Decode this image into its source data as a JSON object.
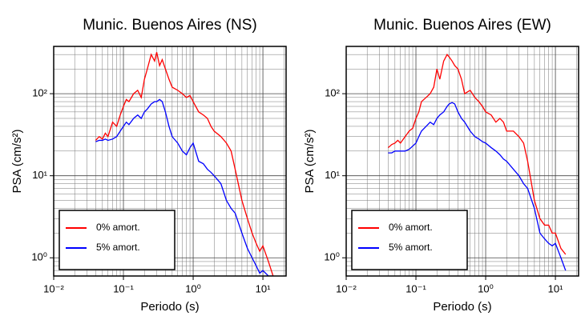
{
  "chart_data": [
    {
      "type": "line",
      "title": "Munic. Buenos Aires (NS)",
      "xlabel": "Periodo (s)",
      "ylabel": "PSA (cm/s²)",
      "log_x": true,
      "log_y": true,
      "grid": true,
      "legend": "lower left",
      "xlim": [
        0.01,
        21.5
      ],
      "ylim": [
        0.6,
        377
      ],
      "xticks": [
        {
          "value": 0.01,
          "label": "10⁻²"
        },
        {
          "value": 0.1,
          "label": "10⁻¹"
        },
        {
          "value": 1,
          "label": "10⁰"
        },
        {
          "value": 10,
          "label": "10¹"
        }
      ],
      "yticks": [
        {
          "value": 1,
          "label": "10⁰"
        },
        {
          "value": 10,
          "label": "10¹"
        },
        {
          "value": 100,
          "label": "10²"
        }
      ],
      "xminorticks": [
        0.02,
        0.03,
        0.04,
        0.05,
        0.06,
        0.07,
        0.08,
        0.09,
        0.2,
        0.3,
        0.4,
        0.5,
        0.6,
        0.7,
        0.8,
        0.9,
        2,
        3,
        4,
        5,
        6,
        7,
        8,
        9,
        20
      ],
      "yminorticks": [
        0.7,
        0.8,
        0.9,
        2,
        3,
        4,
        5,
        6,
        7,
        8,
        9,
        20,
        30,
        40,
        50,
        60,
        70,
        80,
        90,
        200,
        300
      ],
      "x": [
        0.04,
        0.045,
        0.05,
        0.055,
        0.06,
        0.07,
        0.08,
        0.09,
        0.1,
        0.11,
        0.12,
        0.14,
        0.16,
        0.18,
        0.2,
        0.22,
        0.25,
        0.28,
        0.3,
        0.33,
        0.36,
        0.4,
        0.45,
        0.5,
        0.6,
        0.7,
        0.8,
        0.9,
        1.0,
        1.2,
        1.4,
        1.6,
        1.8,
        2.0,
        2.5,
        3.0,
        3.5,
        4.0,
        5,
        6,
        7,
        8,
        9,
        10,
        12,
        14
      ],
      "series": [
        {
          "name": "0% amort.",
          "color": "#ff0000",
          "values": [
            27,
            30,
            28,
            33,
            30,
            45,
            40,
            55,
            70,
            85,
            80,
            100,
            110,
            90,
            150,
            200,
            300,
            250,
            320,
            220,
            260,
            200,
            150,
            120,
            110,
            100,
            90,
            95,
            80,
            60,
            55,
            50,
            40,
            35,
            30,
            25,
            20,
            12,
            5,
            3,
            2,
            1.5,
            1.2,
            1.4,
            0.9,
            0.6
          ]
        },
        {
          "name": "5% amort.",
          "color": "#0000ff",
          "values": [
            26,
            27,
            27,
            28,
            27,
            28,
            30,
            35,
            40,
            45,
            42,
            50,
            55,
            50,
            60,
            65,
            75,
            80,
            80,
            85,
            80,
            60,
            40,
            30,
            25,
            20,
            18,
            22,
            25,
            15,
            14,
            12,
            11,
            10,
            8,
            5,
            4,
            3.5,
            2,
            1.3,
            1,
            0.8,
            0.65,
            0.7,
            0.6,
            0.6
          ]
        }
      ]
    },
    {
      "type": "line",
      "title": "Munic. Buenos Aires (EW)",
      "xlabel": "Periodo (s)",
      "ylabel": "PSA (cm/s²)",
      "log_x": true,
      "log_y": true,
      "grid": true,
      "legend": "lower left",
      "xlim": [
        0.01,
        21.5
      ],
      "ylim": [
        0.6,
        377
      ],
      "xticks": [
        {
          "value": 0.01,
          "label": "10⁻²"
        },
        {
          "value": 0.1,
          "label": "10⁻¹"
        },
        {
          "value": 1,
          "label": "10⁰"
        },
        {
          "value": 10,
          "label": "10¹"
        }
      ],
      "yticks": [
        {
          "value": 1,
          "label": "10⁰"
        },
        {
          "value": 10,
          "label": "10¹"
        },
        {
          "value": 100,
          "label": "10²"
        }
      ],
      "xminorticks": [
        0.02,
        0.03,
        0.04,
        0.05,
        0.06,
        0.07,
        0.08,
        0.09,
        0.2,
        0.3,
        0.4,
        0.5,
        0.6,
        0.7,
        0.8,
        0.9,
        2,
        3,
        4,
        5,
        6,
        7,
        8,
        9,
        20
      ],
      "yminorticks": [
        0.7,
        0.8,
        0.9,
        2,
        3,
        4,
        5,
        6,
        7,
        8,
        9,
        20,
        30,
        40,
        50,
        60,
        70,
        80,
        90,
        200,
        300
      ],
      "x": [
        0.04,
        0.045,
        0.05,
        0.055,
        0.06,
        0.07,
        0.08,
        0.09,
        0.1,
        0.11,
        0.12,
        0.14,
        0.16,
        0.18,
        0.2,
        0.22,
        0.25,
        0.28,
        0.3,
        0.33,
        0.36,
        0.4,
        0.45,
        0.5,
        0.6,
        0.7,
        0.8,
        0.9,
        1.0,
        1.2,
        1.4,
        1.6,
        1.8,
        2.0,
        2.5,
        3.0,
        3.5,
        4.0,
        5,
        6,
        7,
        8,
        9,
        10,
        12,
        14
      ],
      "series": [
        {
          "name": "0% amort.",
          "color": "#ff0000",
          "values": [
            22,
            24,
            25,
            27,
            25,
            30,
            35,
            38,
            50,
            60,
            80,
            90,
            100,
            120,
            200,
            150,
            250,
            300,
            280,
            250,
            220,
            200,
            150,
            100,
            110,
            90,
            80,
            70,
            60,
            55,
            45,
            50,
            45,
            35,
            35,
            30,
            25,
            15,
            5,
            3,
            2.5,
            2.5,
            2,
            2,
            1.3,
            1.1
          ]
        },
        {
          "name": "5% amort.",
          "color": "#0000ff",
          "values": [
            19,
            19,
            20,
            20,
            20,
            20,
            21,
            23,
            25,
            30,
            35,
            40,
            45,
            42,
            50,
            55,
            60,
            70,
            75,
            78,
            75,
            60,
            50,
            45,
            35,
            30,
            28,
            26,
            25,
            22,
            20,
            18,
            16,
            15,
            12,
            10,
            8,
            7,
            4,
            2,
            1.7,
            1.5,
            1.4,
            1.5,
            1,
            0.7
          ]
        }
      ]
    }
  ]
}
